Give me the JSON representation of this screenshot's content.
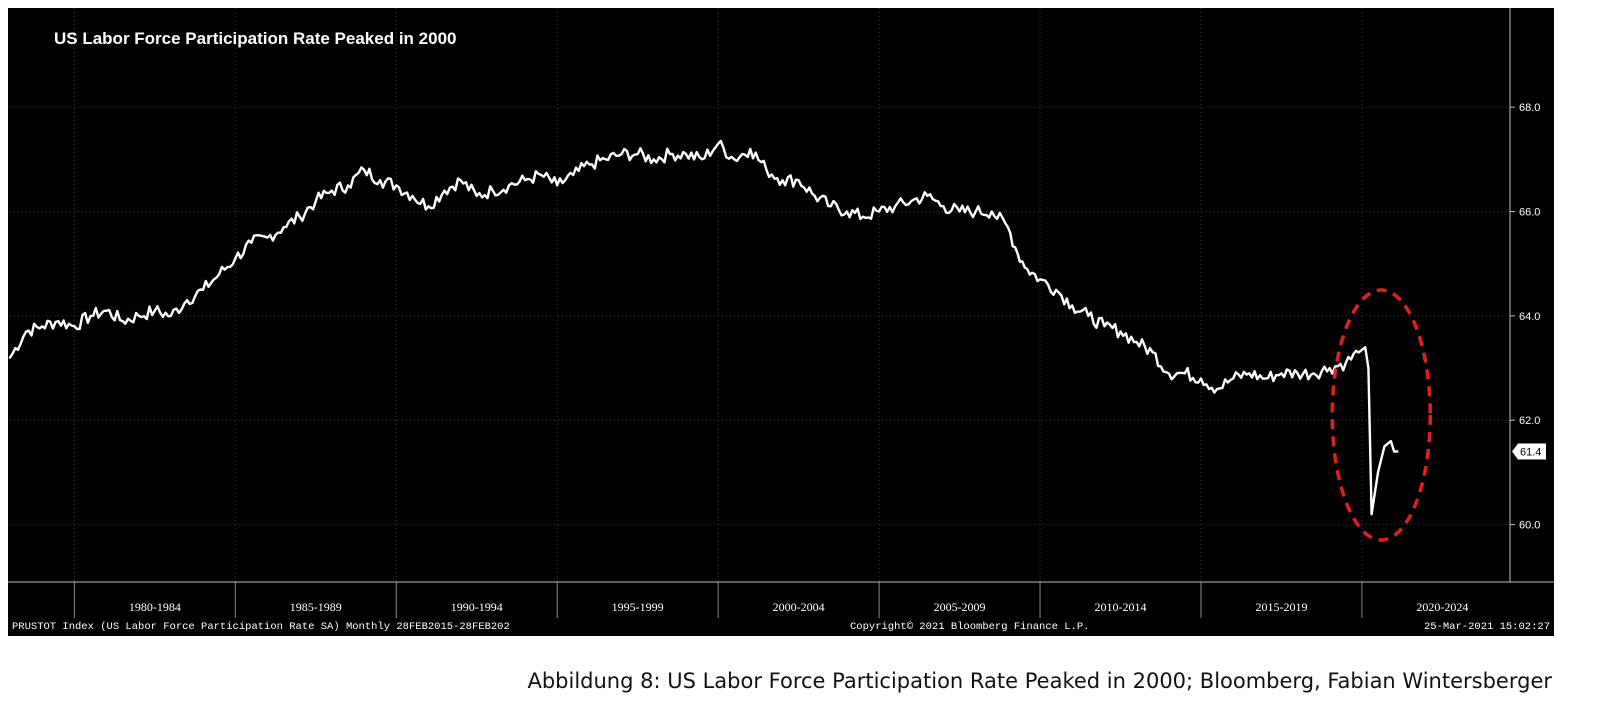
{
  "caption": "Abbildung 8: US Labor Force Participation Rate Peaked in 2000; Bloomberg, Fabian Wintersberger",
  "footer": {
    "left": "PRUSTOT Index (US Labor Force Participation Rate SA)  Monthly 28FEB2015-28FEB202",
    "center": "Copyright© 2021 Bloomberg Finance L.P.",
    "right": "25-Mar-2021 15:02:27"
  },
  "colors": {
    "background": "#000000",
    "line": "#ffffff",
    "grid": "#3a3a3a",
    "annotation": "#e0201b"
  },
  "chart_data": {
    "type": "line",
    "title": "US Labor Force Participation Rate Peaked in 2000",
    "xlabel": "",
    "ylabel": "",
    "y_ticks": [
      "60.0",
      "62.0",
      "64.0",
      "66.0",
      "68.0"
    ],
    "ylim": [
      58.9,
      69.9
    ],
    "xlim": [
      1978.0,
      2024.6
    ],
    "x_period_labels": [
      "1980-1984",
      "1985-1989",
      "1990-1994",
      "1995-1999",
      "2000-2004",
      "2005-2009",
      "2010-2014",
      "2015-2019",
      "2020-2024"
    ],
    "last_value_label": "61.4",
    "grid": true,
    "annotation": "red dashed ellipse around 2020-2021 drop",
    "series": [
      {
        "x": [
          1978.0,
          1978.5,
          1979.0,
          1979.5,
          1980.0,
          1980.5,
          1981.0,
          1981.5,
          1982.0,
          1982.5,
          1983.0,
          1983.5,
          1984.0,
          1984.5,
          1985.0,
          1985.5,
          1986.0,
          1986.5,
          1987.0,
          1987.5,
          1988.0,
          1988.5,
          1989.0,
          1989.5,
          1990.0,
          1990.5,
          1991.0,
          1991.5,
          1992.0,
          1992.5,
          1993.0,
          1993.5,
          1994.0,
          1994.5,
          1995.0,
          1995.5,
          1996.0,
          1996.5,
          1997.0,
          1997.5,
          1998.0,
          1998.5,
          1999.0,
          1999.5,
          2000.0,
          2000.5,
          2001.0,
          2001.5,
          2002.0,
          2002.5,
          2003.0,
          2003.5,
          2004.0,
          2004.5,
          2005.0,
          2005.5,
          2006.0,
          2006.5,
          2007.0,
          2007.5,
          2008.0,
          2008.5,
          2009.0,
          2009.3,
          2009.6,
          2010.0,
          2010.5,
          2011.0,
          2011.5,
          2012.0,
          2012.5,
          2013.0,
          2013.5,
          2014.0,
          2014.5,
          2015.0,
          2015.5,
          2016.0,
          2016.5,
          2017.0,
          2017.5,
          2018.0,
          2018.5,
          2019.0,
          2019.5,
          2019.9,
          2020.1,
          2020.2,
          2020.3,
          2020.5,
          2020.7,
          2020.9,
          2021.0,
          2021.1
        ],
        "values": [
          63.2,
          63.7,
          63.8,
          63.9,
          63.8,
          64.0,
          64.1,
          63.9,
          64.0,
          64.1,
          64.0,
          64.3,
          64.5,
          64.8,
          65.1,
          65.4,
          65.5,
          65.7,
          65.9,
          66.2,
          66.4,
          66.5,
          66.8,
          66.6,
          66.5,
          66.3,
          66.1,
          66.4,
          66.6,
          66.3,
          66.4,
          66.5,
          66.6,
          66.7,
          66.5,
          66.7,
          66.9,
          67.0,
          67.1,
          67.1,
          67.0,
          67.1,
          67.1,
          67.0,
          67.3,
          67.0,
          67.2,
          66.8,
          66.6,
          66.6,
          66.3,
          66.1,
          66.0,
          65.9,
          66.0,
          66.1,
          66.2,
          66.3,
          66.1,
          66.0,
          66.0,
          66.0,
          65.7,
          65.2,
          64.9,
          64.7,
          64.5,
          64.2,
          64.0,
          63.8,
          63.7,
          63.5,
          63.3,
          62.9,
          62.9,
          62.8,
          62.6,
          62.8,
          62.9,
          62.8,
          62.9,
          62.9,
          62.9,
          63.0,
          63.1,
          63.3,
          63.4,
          63.0,
          60.2,
          61.0,
          61.5,
          61.6,
          61.4,
          61.4
        ]
      }
    ]
  }
}
